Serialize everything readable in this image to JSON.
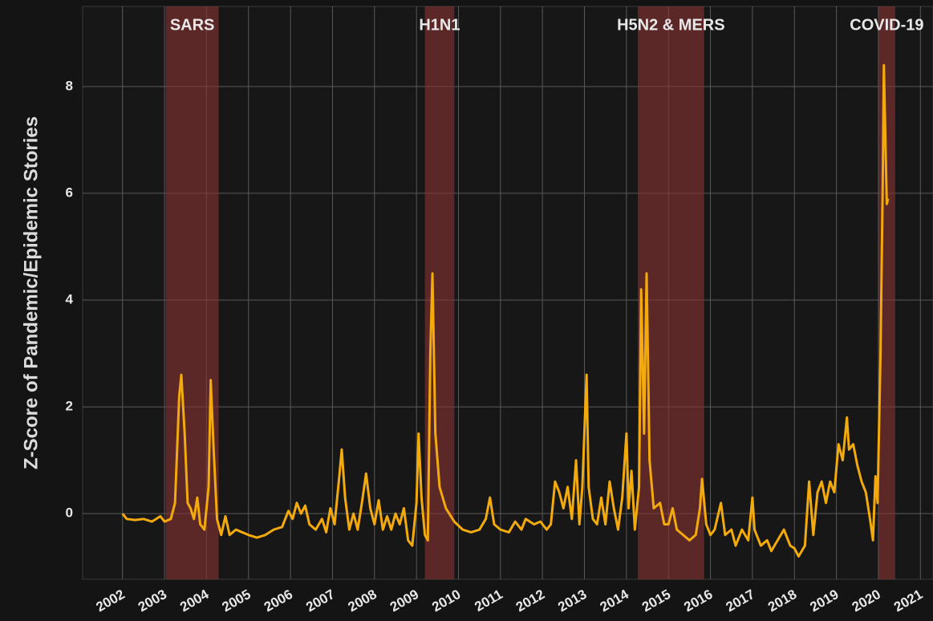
{
  "chart_data": {
    "type": "line",
    "ylabel": "Z-Score of Pandemic/Epidemic Stories",
    "color": "#f2aa0c",
    "grid": true,
    "xlim": [
      2001.05,
      2021.3
    ],
    "ylim": [
      -1.23,
      9.5
    ],
    "xticks": [
      2002,
      2003,
      2004,
      2005,
      2006,
      2007,
      2008,
      2009,
      2010,
      2011,
      2012,
      2013,
      2014,
      2015,
      2016,
      2017,
      2018,
      2019,
      2020,
      2021
    ],
    "yticks": [
      0,
      2,
      4,
      6,
      8
    ],
    "shaded_regions": [
      {
        "label": "SARS",
        "start": 2003.03,
        "end": 2004.29
      },
      {
        "label": "H1N1",
        "start": 2009.2,
        "end": 2009.9
      },
      {
        "label": "H5N2 & MERS",
        "start": 2014.27,
        "end": 2015.85
      },
      {
        "label": "COVID-19",
        "start": 2020.0,
        "end": 2020.4
      }
    ],
    "x": [
      2002.0,
      2002.1,
      2002.3,
      2002.5,
      2002.7,
      2002.9,
      2003.0,
      2003.15,
      2003.25,
      2003.35,
      2003.4,
      2003.48,
      2003.55,
      2003.62,
      2003.7,
      2003.78,
      2003.85,
      2003.95,
      2004.05,
      2004.1,
      2004.17,
      2004.25,
      2004.35,
      2004.45,
      2004.55,
      2004.7,
      2004.85,
      2005.0,
      2005.2,
      2005.4,
      2005.6,
      2005.8,
      2005.95,
      2006.05,
      2006.15,
      2006.25,
      2006.35,
      2006.45,
      2006.6,
      2006.75,
      2006.85,
      2006.95,
      2007.05,
      2007.15,
      2007.22,
      2007.3,
      2007.4,
      2007.5,
      2007.6,
      2007.7,
      2007.8,
      2007.9,
      2008.0,
      2008.1,
      2008.2,
      2008.3,
      2008.4,
      2008.5,
      2008.6,
      2008.7,
      2008.8,
      2008.9,
      2009.0,
      2009.05,
      2009.12,
      2009.2,
      2009.27,
      2009.33,
      2009.38,
      2009.45,
      2009.55,
      2009.7,
      2009.9,
      2010.1,
      2010.3,
      2010.5,
      2010.65,
      2010.75,
      2010.85,
      2011.0,
      2011.2,
      2011.35,
      2011.5,
      2011.6,
      2011.8,
      2011.95,
      2012.1,
      2012.2,
      2012.3,
      2012.4,
      2012.5,
      2012.6,
      2012.7,
      2012.8,
      2012.88,
      2012.95,
      2013.05,
      2013.1,
      2013.2,
      2013.3,
      2013.4,
      2013.5,
      2013.6,
      2013.7,
      2013.8,
      2013.9,
      2014.0,
      2014.05,
      2014.12,
      2014.2,
      2014.3,
      2014.35,
      2014.42,
      2014.48,
      2014.55,
      2014.65,
      2014.8,
      2014.9,
      2015.0,
      2015.1,
      2015.2,
      2015.35,
      2015.5,
      2015.65,
      2015.75,
      2015.8,
      2015.9,
      2016.0,
      2016.1,
      2016.25,
      2016.35,
      2016.5,
      2016.6,
      2016.75,
      2016.9,
      2017.0,
      2017.05,
      2017.2,
      2017.35,
      2017.45,
      2017.6,
      2017.75,
      2017.9,
      2018.0,
      2018.1,
      2018.25,
      2018.35,
      2018.45,
      2018.55,
      2018.65,
      2018.75,
      2018.85,
      2018.95,
      2019.05,
      2019.15,
      2019.25,
      2019.3,
      2019.4,
      2019.5,
      2019.6,
      2019.7,
      2019.8,
      2019.87,
      2019.93,
      2019.98,
      2020.05,
      2020.1,
      2020.13,
      2020.18,
      2020.2,
      2020.23
    ],
    "values": [
      0,
      -0.1,
      -0.12,
      -0.1,
      -0.15,
      -0.05,
      -0.15,
      -0.1,
      0.2,
      2.2,
      2.6,
      1.5,
      0.2,
      0.1,
      -0.1,
      0.3,
      -0.2,
      -0.3,
      0.5,
      2.5,
      1.2,
      -0.1,
      -0.4,
      -0.05,
      -0.4,
      -0.3,
      -0.35,
      -0.4,
      -0.45,
      -0.4,
      -0.3,
      -0.25,
      0.05,
      -0.1,
      0.2,
      0,
      0.15,
      -0.2,
      -0.3,
      -0.1,
      -0.35,
      0.1,
      -0.2,
      0.6,
      1.2,
      0.3,
      -0.3,
      0,
      -0.3,
      0.2,
      0.75,
      0.1,
      -0.2,
      0.25,
      -0.3,
      -0.05,
      -0.3,
      0,
      -0.2,
      0.1,
      -0.5,
      -0.6,
      0.2,
      1.5,
      0.3,
      -0.4,
      -0.5,
      3.0,
      4.5,
      1.5,
      0.5,
      0.1,
      -0.15,
      -0.3,
      -0.35,
      -0.3,
      -0.1,
      0.3,
      -0.2,
      -0.3,
      -0.35,
      -0.15,
      -0.3,
      -0.1,
      -0.2,
      -0.15,
      -0.3,
      -0.2,
      0.6,
      0.4,
      0.1,
      0.5,
      -0.1,
      1.0,
      -0.2,
      0.5,
      2.6,
      0.5,
      -0.1,
      -0.2,
      0.3,
      -0.2,
      0.6,
      0.1,
      -0.3,
      0.3,
      1.5,
      0.1,
      0.8,
      -0.3,
      0.5,
      4.2,
      1.5,
      4.5,
      1.0,
      0.1,
      0.2,
      -0.2,
      -0.2,
      0.1,
      -0.3,
      -0.4,
      -0.5,
      -0.4,
      0.1,
      0.65,
      -0.2,
      -0.4,
      -0.3,
      0.2,
      -0.4,
      -0.3,
      -0.6,
      -0.3,
      -0.5,
      0.3,
      -0.3,
      -0.6,
      -0.5,
      -0.7,
      -0.5,
      -0.3,
      -0.6,
      -0.65,
      -0.8,
      -0.6,
      0.6,
      -0.4,
      0.4,
      0.6,
      0.2,
      0.6,
      0.4,
      1.3,
      1.0,
      1.8,
      1.2,
      1.3,
      0.9,
      0.6,
      0.4,
      -0.1,
      -0.5,
      0.7,
      0.2,
      3.0,
      6,
      8.4,
      6.5,
      5.8,
      5.9
    ]
  }
}
